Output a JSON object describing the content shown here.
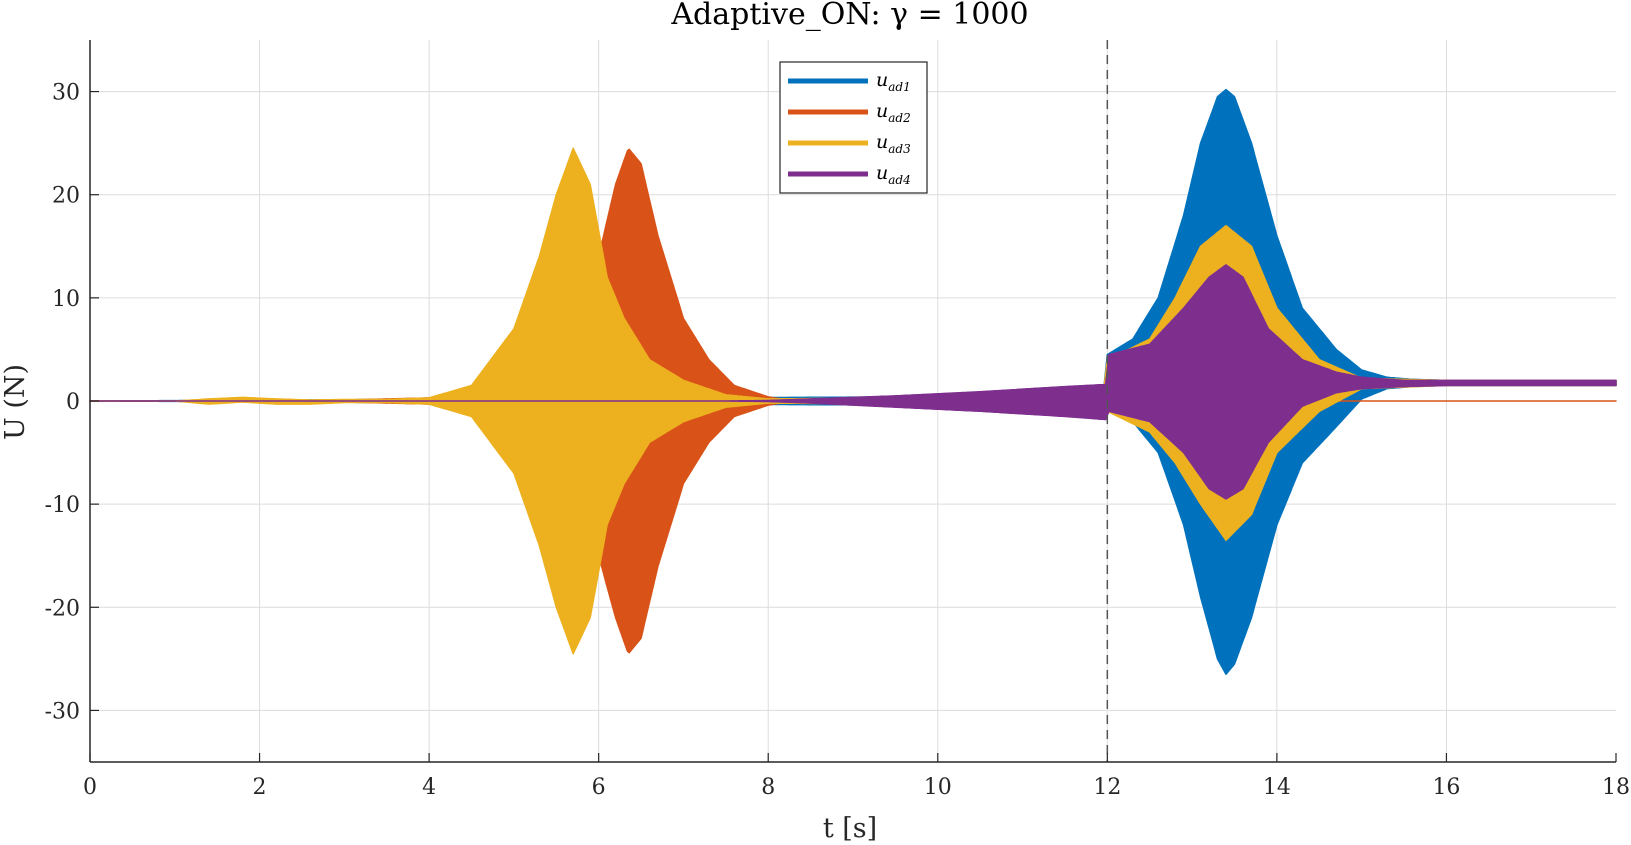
{
  "chart_data": {
    "type": "area",
    "title": "Adaptive_ON: γ = 1000",
    "xlabel": "t [s]",
    "ylabel": "U (N)",
    "xlim": [
      0,
      18
    ],
    "ylim": [
      -35,
      35
    ],
    "xticks": [
      0,
      2,
      4,
      6,
      8,
      10,
      12,
      14,
      16,
      18
    ],
    "xtick_labels": [
      "0",
      "2",
      "4",
      "6",
      "8",
      "10",
      "12",
      "14",
      "16",
      "18"
    ],
    "yticks": [
      -30,
      -20,
      -10,
      0,
      10,
      20,
      30
    ],
    "ytick_labels": [
      "-30",
      "-20",
      "-10",
      "0",
      "10",
      "20",
      "30"
    ],
    "grid": true,
    "legend_position": "top-center",
    "vline": {
      "x": 12,
      "style": "dashed"
    },
    "series": [
      {
        "name": "u_ad1",
        "label_main": "u",
        "label_sub": "ad1",
        "color": "#0072BD",
        "envelope": {
          "t": [
            0,
            11.95,
            12.0,
            12.3,
            12.6,
            12.9,
            13.1,
            13.3,
            13.4,
            13.5,
            13.7,
            14.0,
            14.3,
            14.7,
            15.0,
            15.3,
            15.6,
            16,
            17,
            18
          ],
          "upper": [
            0,
            0.5,
            4.5,
            6,
            10,
            18,
            25,
            29.5,
            30.2,
            29.5,
            25,
            16,
            9,
            5,
            3,
            2.3,
            2.1,
            2,
            2,
            2
          ],
          "lower": [
            0,
            -0.5,
            -1,
            -2,
            -5,
            -12,
            -19,
            -25,
            -26.5,
            -25.5,
            -21,
            -12,
            -6,
            -2.5,
            0.2,
            1.2,
            1.4,
            1.5,
            1.5,
            1.5
          ]
        }
      },
      {
        "name": "u_ad2",
        "label_main": "u",
        "label_sub": "ad2",
        "color": "#D95319",
        "envelope": {
          "t": [
            0,
            1,
            2,
            3,
            4,
            4.5,
            5,
            5.5,
            5.8,
            6.0,
            6.2,
            6.35,
            6.5,
            6.7,
            7.0,
            7.3,
            7.6,
            8.0,
            8.3,
            18
          ],
          "upper": [
            0,
            0,
            0,
            0.1,
            0.3,
            1,
            2.5,
            6,
            10,
            14,
            21,
            24.5,
            23,
            16,
            8,
            4,
            1.5,
            0.4,
            0,
            0
          ],
          "lower": [
            0,
            0,
            0,
            -0.1,
            -0.3,
            -1,
            -2.5,
            -6,
            -10,
            -15,
            -21,
            -24.5,
            -23,
            -16,
            -8,
            -4,
            -1.5,
            -0.4,
            0,
            0
          ]
        }
      },
      {
        "name": "u_ad3",
        "label_main": "u",
        "label_sub": "ad3",
        "color": "#EDB120",
        "envelope": {
          "t": [
            0,
            1.0,
            1.4,
            1.8,
            2.2,
            2.6,
            3.0,
            3.5,
            4.0,
            4.5,
            5.0,
            5.3,
            5.5,
            5.7,
            5.9,
            6.1,
            6.3,
            6.6,
            7.0,
            7.5,
            8.0,
            11.95,
            12.0,
            12.5,
            12.8,
            13.1,
            13.4,
            13.7,
            14.0,
            14.5,
            15,
            16,
            18
          ],
          "upper": [
            0,
            0,
            0.2,
            0.35,
            0.2,
            0.1,
            0.15,
            0.15,
            0.3,
            1.5,
            7,
            14,
            20,
            24.5,
            21,
            12,
            8,
            4,
            2,
            0.6,
            0.2,
            0.5,
            4,
            6,
            10,
            15,
            17,
            15,
            9,
            4,
            2.2,
            2,
            2
          ],
          "lower": [
            0,
            0,
            -0.3,
            -0.1,
            -0.3,
            -0.3,
            -0.15,
            -0.15,
            -0.3,
            -1.5,
            -7,
            -14,
            -20,
            -24.5,
            -21,
            -12,
            -8,
            -4,
            -2,
            -0.6,
            -0.2,
            -0.5,
            -1,
            -3,
            -6,
            -10,
            -13.5,
            -11,
            -5,
            -1,
            1.2,
            1.5,
            1.5
          ]
        }
      },
      {
        "name": "u_ad4",
        "label_main": "u",
        "label_sub": "ad4",
        "color": "#7E2F8E",
        "envelope": {
          "t": [
            0,
            4,
            6,
            7.5,
            8.0,
            8.5,
            9.5,
            10.5,
            11.5,
            11.98,
            12.02,
            12.5,
            12.9,
            13.2,
            13.4,
            13.6,
            13.9,
            14.3,
            14.7,
            15.0,
            15.5,
            16,
            17,
            18
          ],
          "upper": [
            0,
            0,
            0,
            0,
            0.05,
            0.2,
            0.5,
            0.9,
            1.4,
            1.6,
            4.5,
            5.5,
            9,
            12,
            13.2,
            12,
            7,
            4,
            2.8,
            2.3,
            2,
            2,
            2,
            2
          ],
          "lower": [
            0,
            0,
            0,
            0,
            -0.05,
            -0.2,
            -0.6,
            -1.0,
            -1.5,
            -1.8,
            -1,
            -2,
            -5,
            -8.5,
            -9.5,
            -8.5,
            -4,
            -0.5,
            0.8,
            1.2,
            1.4,
            1.5,
            1.5,
            1.5
          ]
        }
      }
    ]
  }
}
